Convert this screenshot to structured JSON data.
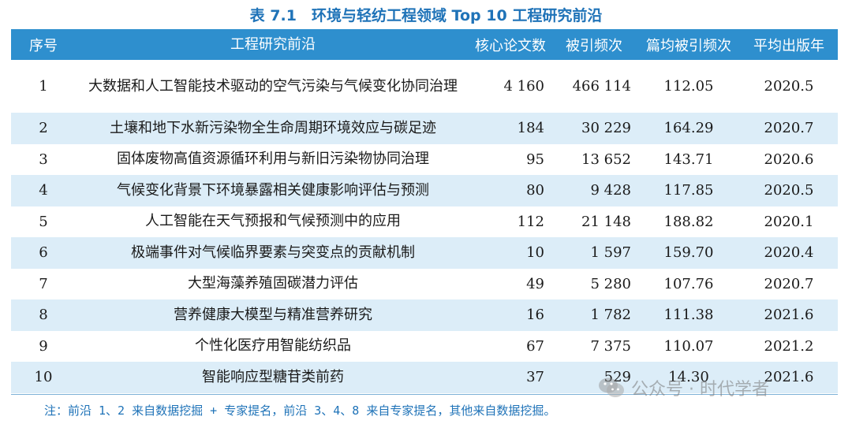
{
  "caption": "表 7.1　环境与轻纺工程领域 Top 10 工程研究前沿",
  "columns": [
    "序号",
    "工程研究前沿",
    "核心论文数",
    "被引频次",
    "篇均被引频次",
    "平均出版年"
  ],
  "rows": [
    {
      "no": "1",
      "topic": "大数据和人工智能技术驱动的空气污染与气候变化协同治理",
      "papers": "4 160",
      "citations": "466 114",
      "avg_citations": "112.05",
      "year": "2020.5"
    },
    {
      "no": "2",
      "topic": "土壤和地下水新污染物全生命周期环境效应与碳足迹",
      "papers": "184",
      "citations": "30 229",
      "avg_citations": "164.29",
      "year": "2020.7"
    },
    {
      "no": "3",
      "topic": "固体废物高值资源循环利用与新旧污染物协同治理",
      "papers": "95",
      "citations": "13 652",
      "avg_citations": "143.71",
      "year": "2020.6"
    },
    {
      "no": "4",
      "topic": "气候变化背景下环境暴露相关健康影响评估与预测",
      "papers": "80",
      "citations": "9 428",
      "avg_citations": "117.85",
      "year": "2020.5"
    },
    {
      "no": "5",
      "topic": "人工智能在天气预报和气候预测中的应用",
      "papers": "112",
      "citations": "21 148",
      "avg_citations": "188.82",
      "year": "2020.1"
    },
    {
      "no": "6",
      "topic": "极端事件对气候临界要素与突变点的贡献机制",
      "papers": "10",
      "citations": "1 597",
      "avg_citations": "159.70",
      "year": "2020.4"
    },
    {
      "no": "7",
      "topic": "大型海藻养殖固碳潜力评估",
      "papers": "49",
      "citations": "5 280",
      "avg_citations": "107.76",
      "year": "2020.7"
    },
    {
      "no": "8",
      "topic": "营养健康大模型与精准营养研究",
      "papers": "16",
      "citations": "1 782",
      "avg_citations": "111.38",
      "year": "2021.6"
    },
    {
      "no": "9",
      "topic": "个性化医疗用智能纺织品",
      "papers": "67",
      "citations": "7 375",
      "avg_citations": "110.07",
      "year": "2021.2"
    },
    {
      "no": "10",
      "topic": "智能响应型糖苷类前药",
      "papers": "37",
      "citations": "529",
      "avg_citations": "14.30",
      "year": "2021.6"
    }
  ],
  "note": "注：前沿 1、2 来自数据挖掘 + 专家提名，前沿 3、4、8 来自专家提名，其他来自数据挖掘。",
  "watermark": "公众号 · 时代学者",
  "colors": {
    "accent": "#1f73b8",
    "header_bg": "#2e8fce",
    "alt_row_bg": "#dcedf8"
  }
}
